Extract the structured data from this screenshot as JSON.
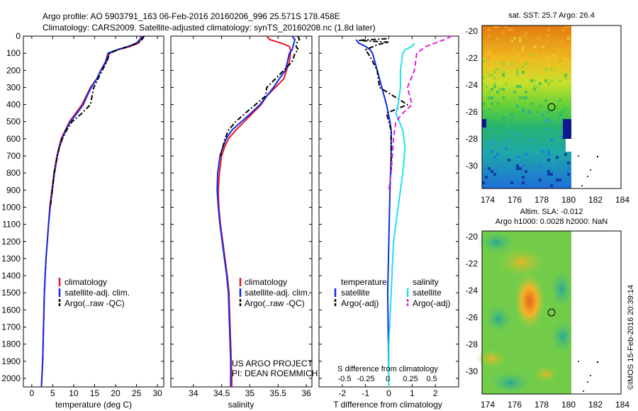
{
  "header": {
    "title_line1": "Argo profile: AO 5903791_163 06-Feb-2016 20160206_996 25.571S 178.458E",
    "title_line2": "Climatology: CARS2009. Satellite-adjusted climatology: synTS_20160208.nc (1.8d later)"
  },
  "colors": {
    "climatology": "#e8141e",
    "satellite": "#1428e6",
    "argo": "#000000",
    "satellite_salinity": "#22e0e6",
    "argo_salinity": "#e01edc"
  },
  "chart_data": [
    {
      "type": "line",
      "id": "temperature",
      "xlabel": "temperature (deg C)",
      "xlim": [
        -2,
        31.5
      ],
      "xticks": [
        0,
        5,
        10,
        15,
        20,
        25,
        30
      ],
      "ylim": [
        2050,
        0
      ],
      "yticks": [
        0,
        100,
        200,
        300,
        400,
        500,
        600,
        700,
        800,
        900,
        1000,
        1100,
        1200,
        1300,
        1400,
        1500,
        1600,
        1700,
        1800,
        1900,
        2000
      ],
      "legend": [
        "climatology",
        "satellite-adj. clim.",
        "Argo(..raw -QC)"
      ],
      "series": [
        {
          "name": "climatology",
          "color": "#e8141e",
          "dash": "",
          "points": [
            [
              26.5,
              0
            ],
            [
              26,
              20
            ],
            [
              25.5,
              40
            ],
            [
              23.5,
              60
            ],
            [
              20.5,
              80
            ],
            [
              18.5,
              100
            ],
            [
              17.8,
              150
            ],
            [
              16.5,
              200
            ],
            [
              15.5,
              250
            ],
            [
              14,
              300
            ],
            [
              13,
              350
            ],
            [
              12,
              400
            ],
            [
              10.5,
              450
            ],
            [
              9,
              500
            ],
            [
              8,
              550
            ],
            [
              7,
              600
            ],
            [
              6.5,
              650
            ],
            [
              6,
              700
            ],
            [
              5.3,
              800
            ],
            [
              4.8,
              900
            ],
            [
              4.3,
              1000
            ],
            [
              4,
              1100
            ],
            [
              3.7,
              1200
            ],
            [
              3.4,
              1300
            ],
            [
              3.2,
              1400
            ],
            [
              3,
              1500
            ],
            [
              2.9,
              1600
            ],
            [
              2.8,
              1700
            ],
            [
              2.7,
              1800
            ],
            [
              2.6,
              1900
            ],
            [
              2.4,
              2000
            ],
            [
              2.3,
              2050
            ]
          ]
        },
        {
          "name": "satellite-adj. clim.",
          "color": "#1428e6",
          "dash": "",
          "points": [
            [
              26.2,
              0
            ],
            [
              25.8,
              20
            ],
            [
              25,
              40
            ],
            [
              23,
              60
            ],
            [
              20.3,
              80
            ],
            [
              18.2,
              100
            ],
            [
              17.6,
              150
            ],
            [
              16.5,
              200
            ],
            [
              15.5,
              250
            ],
            [
              14.2,
              300
            ],
            [
              13.2,
              350
            ],
            [
              12.3,
              400
            ],
            [
              10.8,
              450
            ],
            [
              9.2,
              500
            ],
            [
              8.1,
              550
            ],
            [
              7.2,
              600
            ],
            [
              6.6,
              650
            ],
            [
              6.1,
              700
            ],
            [
              5.4,
              800
            ],
            [
              4.9,
              900
            ],
            [
              4.4,
              1000
            ],
            [
              4,
              1100
            ],
            [
              3.7,
              1200
            ],
            [
              3.4,
              1300
            ],
            [
              3.2,
              1400
            ],
            [
              3,
              1500
            ],
            [
              2.9,
              1600
            ],
            [
              2.8,
              1700
            ],
            [
              2.7,
              1800
            ],
            [
              2.6,
              1900
            ],
            [
              2.4,
              2000
            ],
            [
              2.3,
              2050
            ]
          ]
        },
        {
          "name": "Argo(..raw -QC)",
          "color": "#000000",
          "dash": "7,3,2,3",
          "points": [
            [
              26.8,
              0
            ],
            [
              26.3,
              20
            ],
            [
              25.4,
              40
            ],
            [
              23.2,
              60
            ],
            [
              20.5,
              80
            ],
            [
              18.6,
              100
            ],
            [
              17.9,
              150
            ],
            [
              16.8,
              200
            ],
            [
              15.8,
              250
            ],
            [
              14.8,
              300
            ],
            [
              14.4,
              350
            ],
            [
              14,
              400
            ],
            [
              12,
              450
            ],
            [
              9.6,
              500
            ],
            [
              8.3,
              550
            ],
            [
              7.3,
              600
            ],
            [
              6.6,
              650
            ],
            [
              6.1,
              700
            ],
            [
              5.4,
              800
            ],
            [
              4.9,
              900
            ],
            [
              4.4,
              1000
            ]
          ]
        }
      ]
    },
    {
      "type": "line",
      "id": "salinity",
      "xlabel": "salinity",
      "xlim": [
        33.6,
        36.1
      ],
      "xticks": [
        34,
        34.5,
        35,
        35.5,
        36
      ],
      "ylim": [
        2050,
        0
      ],
      "legend": [
        "climatology",
        "satellite-adj. clim.",
        "Argo(..raw -QC)"
      ],
      "annotation": [
        "US ARGO PROJECT",
        "PI: DEAN ROEMMICH"
      ],
      "series": [
        {
          "name": "climatology",
          "color": "#e8141e",
          "dash": "",
          "points": [
            [
              35.3,
              0
            ],
            [
              35.35,
              20
            ],
            [
              35.55,
              40
            ],
            [
              35.7,
              60
            ],
            [
              35.72,
              80
            ],
            [
              35.72,
              100
            ],
            [
              35.7,
              150
            ],
            [
              35.6,
              250
            ],
            [
              35.45,
              300
            ],
            [
              35.3,
              350
            ],
            [
              35.2,
              400
            ],
            [
              35.05,
              450
            ],
            [
              34.9,
              500
            ],
            [
              34.75,
              550
            ],
            [
              34.62,
              600
            ],
            [
              34.55,
              650
            ],
            [
              34.5,
              700
            ],
            [
              34.46,
              800
            ],
            [
              34.44,
              900
            ],
            [
              34.45,
              1000
            ],
            [
              34.48,
              1100
            ],
            [
              34.52,
              1200
            ],
            [
              34.56,
              1300
            ],
            [
              34.6,
              1400
            ],
            [
              34.63,
              1500
            ],
            [
              34.64,
              1600
            ],
            [
              34.65,
              1700
            ],
            [
              34.66,
              1800
            ],
            [
              34.67,
              1900
            ],
            [
              34.68,
              2000
            ],
            [
              34.68,
              2050
            ]
          ]
        },
        {
          "name": "satellite-adj. clim.",
          "color": "#1428e6",
          "dash": "",
          "points": [
            [
              35.75,
              0
            ],
            [
              35.8,
              20
            ],
            [
              35.78,
              40
            ],
            [
              35.75,
              80
            ],
            [
              35.7,
              100
            ],
            [
              35.63,
              200
            ],
            [
              35.52,
              250
            ],
            [
              35.42,
              300
            ],
            [
              35.3,
              350
            ],
            [
              35.18,
              400
            ],
            [
              35.02,
              450
            ],
            [
              34.85,
              500
            ],
            [
              34.68,
              550
            ],
            [
              34.58,
              600
            ],
            [
              34.52,
              650
            ],
            [
              34.47,
              700
            ],
            [
              34.43,
              800
            ],
            [
              34.42,
              900
            ],
            [
              34.44,
              1000
            ],
            [
              34.47,
              1100
            ],
            [
              34.51,
              1200
            ],
            [
              34.55,
              1300
            ],
            [
              34.59,
              1400
            ],
            [
              34.62,
              1500
            ],
            [
              34.63,
              1600
            ],
            [
              34.64,
              1700
            ],
            [
              34.65,
              1800
            ],
            [
              34.66,
              1900
            ],
            [
              34.66,
              2000
            ],
            [
              34.66,
              2050
            ]
          ]
        },
        {
          "name": "Argo(..raw -QC)",
          "color": "#000000",
          "dash": "7,3,2,3",
          "points": [
            [
              35.85,
              0
            ],
            [
              35.88,
              20
            ],
            [
              35.83,
              40
            ],
            [
              35.82,
              60
            ],
            [
              35.86,
              80
            ],
            [
              35.8,
              100
            ],
            [
              35.75,
              150
            ],
            [
              35.6,
              200
            ],
            [
              35.45,
              250
            ],
            [
              35.3,
              300
            ],
            [
              35.28,
              350
            ],
            [
              35.1,
              400
            ],
            [
              34.92,
              450
            ],
            [
              34.75,
              500
            ],
            [
              34.62,
              550
            ],
            [
              34.56,
              600
            ],
            [
              34.52,
              650
            ],
            [
              34.48,
              700
            ]
          ]
        }
      ]
    },
    {
      "type": "line",
      "id": "difference",
      "xlabel": "T difference from climatology",
      "top_label": "S difference from climatology",
      "xlim": [
        -3,
        3
      ],
      "xticks": [
        -2,
        -1,
        0,
        1,
        2
      ],
      "top_xticks": [
        "-0.5",
        "-0.25",
        "0",
        "0.25",
        "0.5"
      ],
      "ylim": [
        2050,
        0
      ],
      "legend_headers": [
        "temperature",
        "salinity"
      ],
      "legend": [
        "satellite",
        "Argo(-adj)",
        "satellite",
        "Argo(-adj)"
      ],
      "series": [
        {
          "name": "T satellite",
          "color": "#1428e6",
          "dash": "",
          "points": [
            [
              -1.4,
              20
            ],
            [
              -1.3,
              40
            ],
            [
              -1,
              60
            ],
            [
              -0.8,
              80
            ],
            [
              -0.7,
              100
            ],
            [
              -0.5,
              200
            ],
            [
              -0.3,
              300
            ],
            [
              -0.1,
              400
            ],
            [
              0.05,
              500
            ],
            [
              0.1,
              550
            ],
            [
              0.1,
              600
            ],
            [
              0.1,
              700
            ],
            [
              0.05,
              900
            ],
            [
              0,
              1200
            ],
            [
              -0.05,
              1500
            ],
            [
              0,
              2000
            ],
            [
              0,
              2050
            ]
          ]
        },
        {
          "name": "T Argo(-adj)",
          "color": "#000000",
          "dash": "7,3,2,3",
          "points": [
            [
              -0.1,
              15
            ],
            [
              -1.3,
              25
            ],
            [
              0,
              35
            ],
            [
              -0.5,
              50
            ],
            [
              -1,
              80
            ],
            [
              -0.8,
              120
            ],
            [
              -0.5,
              200
            ],
            [
              -0.4,
              300
            ],
            [
              0.8,
              400
            ],
            [
              -0.1,
              450
            ],
            [
              0,
              500
            ],
            [
              0.1,
              550
            ],
            [
              0.1,
              600
            ],
            [
              0.1,
              800
            ]
          ]
        },
        {
          "name": "S satellite",
          "color": "#22e0e6",
          "dash": "",
          "points": [
            [
              1.1,
              40
            ],
            [
              1,
              60
            ],
            [
              0.7,
              80
            ],
            [
              0.6,
              100
            ],
            [
              0.5,
              200
            ],
            [
              0.5,
              300
            ],
            [
              0.4,
              400
            ],
            [
              0.3,
              450
            ],
            [
              0.6,
              550
            ],
            [
              0.7,
              650
            ],
            [
              0.6,
              800
            ],
            [
              0.4,
              1000
            ],
            [
              0.2,
              1200
            ],
            [
              0.1,
              1500
            ],
            [
              0,
              1800
            ],
            [
              0,
              2050
            ]
          ]
        },
        {
          "name": "S Argo(-adj)",
          "color": "#e01edc",
          "dash": "7,4",
          "points": [
            [
              2.7,
              0
            ],
            [
              2.4,
              20
            ],
            [
              2,
              40
            ],
            [
              1.6,
              60
            ],
            [
              1.4,
              80
            ],
            [
              1.2,
              100
            ],
            [
              1.1,
              200
            ],
            [
              0.8,
              300
            ],
            [
              1,
              400
            ],
            [
              0.6,
              450
            ],
            [
              0.3,
              500
            ],
            [
              0.2,
              600
            ],
            [
              0.15,
              700
            ],
            [
              0.1,
              800
            ],
            [
              0,
              900
            ]
          ]
        }
      ]
    }
  ],
  "maps": {
    "sst_title": "sat. SST: 25.7  Argo: 26.4",
    "sla_title_line1": "Altim. SLA: -0.012",
    "sla_title_line2": "Argo h1000: 0.0028 h2000: NaN",
    "lon_ticks": [
      "174",
      "176",
      "178",
      "180",
      "182",
      "184"
    ],
    "sst_lat_ticks": [
      "-20",
      "-22",
      "-24",
      "-26",
      "-28",
      "-30"
    ],
    "sla_lat_ticks": [
      "-20",
      "-22",
      "-24",
      "-26",
      "-28",
      "-30"
    ],
    "float_position": {
      "lon": 178.458,
      "lat": -25.571
    }
  },
  "credit": "©IMOS 15-Feb-2016 20:39:14"
}
